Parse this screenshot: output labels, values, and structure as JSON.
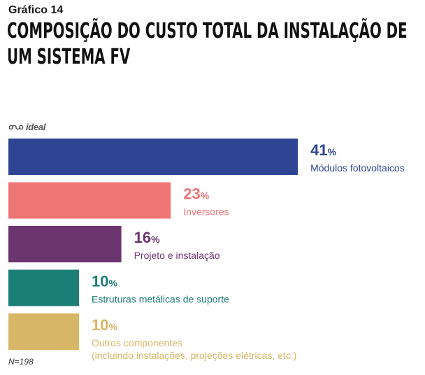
{
  "header": {
    "subtitle": "Gráfico 14",
    "title_line1": "COMPOSIÇÃO DO CUSTO TOTAL DA INSTALAÇÃO DE",
    "title_line2": "UM SISTEMA FV"
  },
  "logo": {
    "text": "ideal",
    "icon": "infinity-icon"
  },
  "note": "N=198",
  "chart_data": {
    "type": "bar",
    "orientation": "horizontal",
    "unit": "%",
    "xlim": [
      0,
      100
    ],
    "grid": false,
    "legend": "none",
    "categories": [
      [
        "Módulos fotovoltaicos"
      ],
      [
        "Inversores"
      ],
      [
        "Projeto e instalação"
      ],
      [
        "Estruturas metálicas de suporte"
      ],
      [
        "Outros componentes",
        "(incluindo instalações, projeções elétricas, etc.)"
      ]
    ],
    "values": [
      41,
      23,
      16,
      10,
      10
    ],
    "colors": [
      "#2e4594",
      "#f07676",
      "#6b3570",
      "#1b7e77",
      "#d7b665"
    ]
  }
}
